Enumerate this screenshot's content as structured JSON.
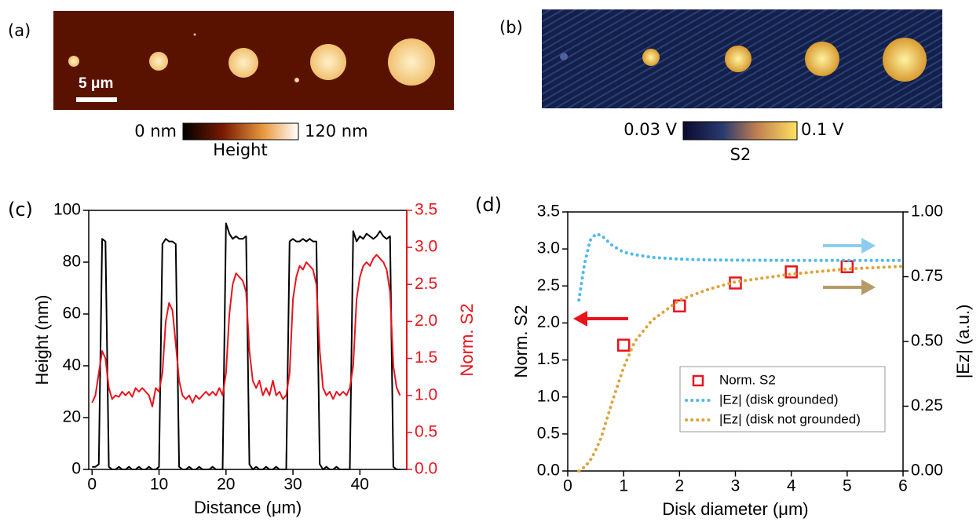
{
  "panels": [
    {
      "label": "(a)",
      "scale_bar": "5 μm",
      "colorbar": {
        "min": "0 nm",
        "max": "120 nm",
        "title": "Height"
      }
    },
    {
      "label": "(b)",
      "colorbar": {
        "min": "0.03 V",
        "max": "0.1 V",
        "title": "S2"
      }
    }
  ],
  "chart_data": [
    {
      "type": "line",
      "label": "(c)",
      "xlabel": "Distance (μm)",
      "ylabel": "Height (nm)",
      "y2label": "Norm. S2",
      "y2color": "#e8141c",
      "xlim": [
        -0.5,
        47
      ],
      "xticks": [
        0,
        10,
        20,
        30,
        40
      ],
      "ylim": [
        0,
        100
      ],
      "yticks": [
        0,
        20,
        40,
        60,
        80,
        100
      ],
      "y2lim": [
        0,
        3.5
      ],
      "y2ticks": [
        {
          "value": 0,
          "label": "0.0"
        },
        0.5,
        {
          "value": 1,
          "label": "1.0"
        },
        1.5,
        {
          "value": 2,
          "label": "2.0"
        },
        2.5,
        {
          "value": 3,
          "label": "3.0"
        },
        3.5
      ],
      "x": [
        0,
        0.5,
        1,
        1.5,
        2,
        2.5,
        3,
        3.5,
        4,
        4.5,
        5,
        5.5,
        6,
        6.5,
        7,
        7.5,
        8,
        8.5,
        9,
        9.5,
        10,
        10.5,
        11,
        11.5,
        12,
        12.5,
        13,
        13.5,
        14,
        14.5,
        15,
        15.5,
        16,
        16.5,
        17,
        17.5,
        18,
        18.5,
        19,
        19.5,
        20,
        20.5,
        21,
        21.5,
        22,
        22.5,
        23,
        23.5,
        24,
        24.5,
        25,
        25.5,
        26,
        26.5,
        27,
        27.5,
        28,
        28.5,
        29,
        29.5,
        30,
        30.5,
        31,
        31.5,
        32,
        32.5,
        33,
        33.5,
        34,
        34.5,
        35,
        35.5,
        36,
        36.5,
        37,
        37.5,
        38,
        38.5,
        39,
        39.5,
        40,
        40.5,
        41,
        41.5,
        42,
        42.5,
        43,
        43.5,
        44,
        44.5,
        45,
        45.5,
        46
      ],
      "series": [
        {
          "name": "Height",
          "color": "#000000",
          "values": [
            1,
            1,
            2,
            89,
            88,
            1,
            0,
            0,
            1,
            0,
            0,
            1,
            0,
            0,
            1,
            0,
            0,
            1,
            0,
            0,
            1,
            87,
            89,
            88,
            88,
            87,
            1,
            0,
            0,
            1,
            0,
            0,
            1,
            0,
            0,
            0,
            1,
            0,
            0,
            0,
            95,
            91,
            89,
            90,
            89,
            89,
            90,
            2,
            0,
            1,
            0,
            0,
            1,
            0,
            0,
            1,
            0,
            0,
            0,
            88,
            89,
            88,
            88,
            89,
            88,
            89,
            88,
            88,
            2,
            0,
            1,
            0,
            0,
            1,
            0,
            0,
            0,
            0,
            92,
            88,
            90,
            89,
            91,
            90,
            89,
            90,
            92,
            90,
            89,
            90,
            1,
            0,
            0
          ]
        },
        {
          "name": "Norm. S2",
          "color": "#e8141c",
          "axis": "y2",
          "values": [
            0.9,
            1.0,
            1.3,
            1.6,
            1.5,
            1.1,
            0.95,
            1.0,
            0.98,
            1.05,
            1.0,
            1.05,
            0.98,
            1.1,
            1.05,
            1.1,
            1.05,
            1.0,
            0.85,
            1.1,
            1.05,
            1.3,
            2.0,
            2.25,
            2.15,
            1.7,
            1.2,
            1.0,
            0.95,
            1.0,
            0.9,
            1.0,
            0.95,
            1.0,
            1.05,
            1.0,
            1.05,
            1.0,
            1.1,
            1.0,
            1.3,
            2.1,
            2.5,
            2.65,
            2.6,
            2.55,
            2.4,
            1.6,
            1.2,
            1.1,
            1.2,
            1.0,
            1.1,
            1.0,
            1.2,
            1.0,
            1.05,
            0.95,
            1.0,
            1.3,
            2.3,
            2.6,
            2.75,
            2.7,
            2.8,
            2.75,
            2.7,
            2.5,
            1.6,
            1.1,
            1.0,
            1.05,
            0.95,
            1.05,
            1.0,
            1.05,
            1.0,
            1.1,
            1.4,
            2.3,
            2.6,
            2.75,
            2.8,
            2.75,
            2.85,
            2.9,
            2.85,
            2.8,
            2.7,
            2.4,
            1.4,
            1.1,
            1.0
          ]
        }
      ]
    },
    {
      "type": "line",
      "label": "(d)",
      "xlabel": "Disk diameter (μm)",
      "ylabel": "Norm. S2",
      "y2label": "|Ez| (a.u.)",
      "legend": "lower right",
      "xlim": [
        0,
        6
      ],
      "xticks": [
        0,
        1,
        2,
        3,
        4,
        5,
        6
      ],
      "ylim": [
        0,
        3.5
      ],
      "yticks": [
        {
          "value": 0,
          "label": "0.0"
        },
        0.5,
        {
          "value": 1,
          "label": "1.0"
        },
        1.5,
        {
          "value": 2,
          "label": "2.0"
        },
        2.5,
        {
          "value": 3,
          "label": "3.0"
        },
        3.5
      ],
      "y2lim": [
        0,
        1
      ],
      "y2ticks": [
        {
          "value": 0,
          "label": "0.00"
        },
        0.25,
        {
          "value": 0.5,
          "label": "0.50"
        },
        0.75,
        {
          "value": 1,
          "label": "1.00"
        }
      ],
      "x": [
        0.2,
        0.3,
        0.4,
        0.5,
        0.6,
        0.8,
        1,
        1.2,
        1.5,
        2,
        2.5,
        3,
        4,
        5,
        6
      ],
      "series": [
        {
          "name": "Norm. S2",
          "type": "scatter",
          "color": "#e8141c",
          "values": [
            null,
            null,
            null,
            null,
            null,
            null,
            1.7,
            null,
            null,
            2.23,
            null,
            2.54,
            2.69,
            2.76,
            null
          ]
        },
        {
          "name": "|Ez| (disk grounded)",
          "type": "line",
          "dash": "dotted",
          "color": "#4fb8ec",
          "axis": "y2",
          "values": [
            0.66,
            0.8,
            0.89,
            0.915,
            0.91,
            0.87,
            0.845,
            0.835,
            0.825,
            0.818,
            0.815,
            0.814,
            0.813,
            0.813,
            0.813
          ]
        },
        {
          "name": "|Ez| (disk not grounded)",
          "type": "line",
          "dash": "dotted",
          "color": "#e0a33a",
          "axis": "y2",
          "values": [
            0,
            0.015,
            0.04,
            0.08,
            0.13,
            0.27,
            0.4,
            0.5,
            0.58,
            0.66,
            0.7,
            0.73,
            0.76,
            0.78,
            0.79
          ]
        }
      ]
    }
  ]
}
